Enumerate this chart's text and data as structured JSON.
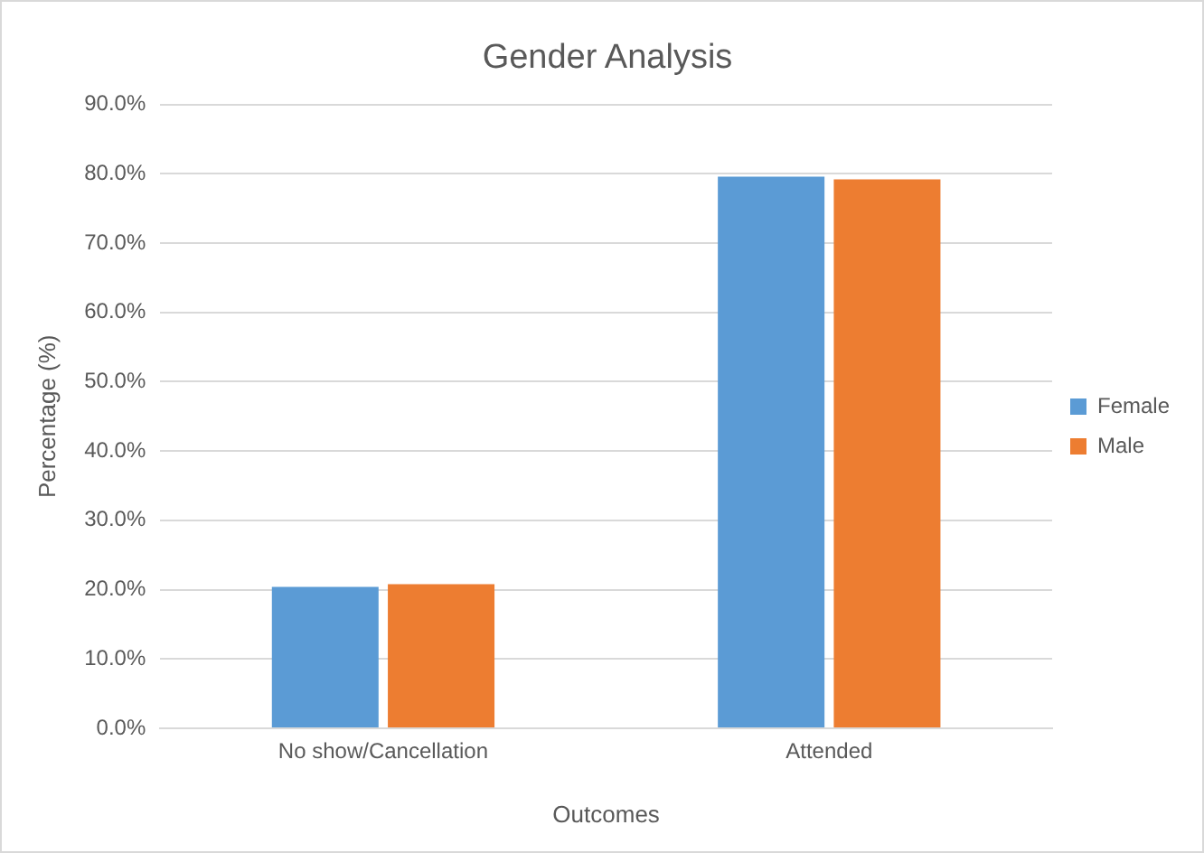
{
  "chart_data": {
    "type": "bar",
    "title": "Gender Analysis",
    "xlabel": "Outcomes",
    "ylabel": "Percentage (%)",
    "categories": [
      "No show/Cancellation",
      "Attended"
    ],
    "series": [
      {
        "name": "Female",
        "color": "#5b9bd5",
        "values": [
          20.4,
          79.6
        ]
      },
      {
        "name": "Male",
        "color": "#ed7d31",
        "values": [
          20.8,
          79.2
        ]
      }
    ],
    "ylim": [
      0,
      90
    ],
    "yticks": [
      {
        "value": 0,
        "label": "0.0%"
      },
      {
        "value": 10,
        "label": "10.0%"
      },
      {
        "value": 20,
        "label": "20.0%"
      },
      {
        "value": 30,
        "label": "30.0%"
      },
      {
        "value": 40,
        "label": "40.0%"
      },
      {
        "value": 50,
        "label": "50.0%"
      },
      {
        "value": 60,
        "label": "60.0%"
      },
      {
        "value": 70,
        "label": "70.0%"
      },
      {
        "value": 80,
        "label": "80.0%"
      },
      {
        "value": 90,
        "label": "90.0%"
      }
    ],
    "grid": "y",
    "legend": "right"
  }
}
